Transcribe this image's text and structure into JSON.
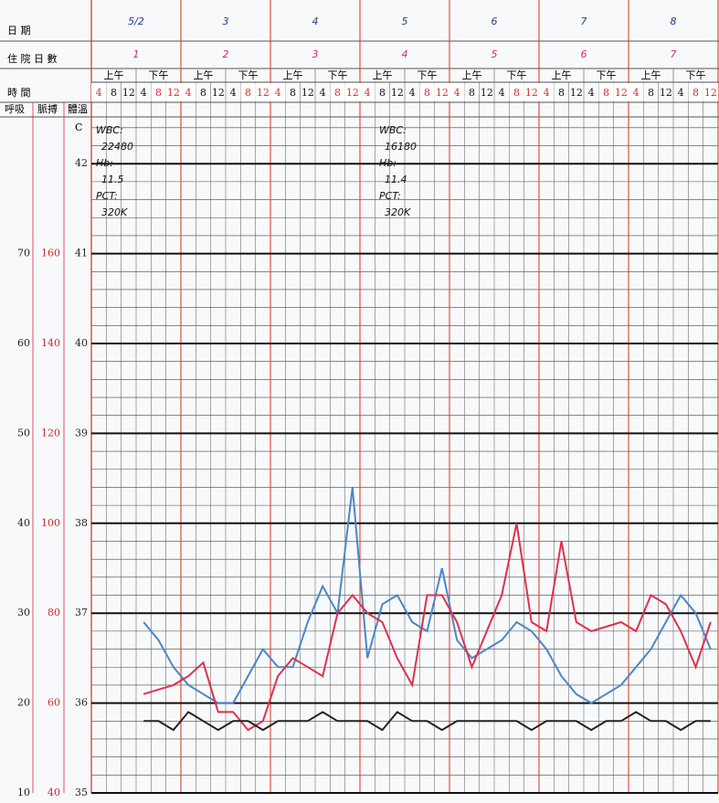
{
  "chart_data": {
    "type": "line",
    "row_labels": {
      "date": "日 期",
      "day": "住 院 日 數",
      "time": "時 間"
    },
    "periods": [
      "上午",
      "下午"
    ],
    "dates": [
      "5/2",
      "3",
      "4",
      "5",
      "6",
      "7",
      "8"
    ],
    "hospital_days": [
      "1",
      "2",
      "3",
      "4",
      "5",
      "6",
      "7"
    ],
    "categories": [
      "4",
      "8",
      "12",
      "4",
      "8",
      "12",
      "4",
      "8",
      "12",
      "4",
      "8",
      "12",
      "4",
      "8",
      "12",
      "4",
      "8",
      "12",
      "4",
      "8",
      "12",
      "4",
      "8",
      "12",
      "4",
      "8",
      "12",
      "4",
      "8",
      "12",
      "4",
      "8",
      "12",
      "4",
      "8",
      "12",
      "4",
      "8",
      "12",
      "4",
      "8",
      "12"
    ],
    "temp_unit": "C",
    "ylim": [
      35,
      42.5
    ],
    "yticks": [
      35,
      36,
      37,
      38,
      39,
      40,
      41,
      42
    ],
    "y2lim": [
      40,
      190
    ],
    "y2ticks": [
      40,
      60,
      80,
      100,
      120,
      140,
      160
    ],
    "y3lim": [
      10,
      85
    ],
    "y3ticks": [
      10,
      20,
      30,
      40,
      50,
      60,
      70
    ],
    "series": [
      {
        "name": "體溫",
        "color": "#4a86c8",
        "axis": "y",
        "values": [
          null,
          null,
          null,
          36.9,
          36.7,
          36.4,
          36.2,
          36.1,
          36.0,
          36.0,
          36.3,
          36.6,
          36.4,
          36.4,
          36.9,
          37.3,
          37.0,
          38.4,
          36.5,
          37.1,
          37.2,
          36.9,
          36.8,
          37.5,
          36.7,
          36.5,
          36.6,
          36.7,
          36.9,
          36.8,
          36.6,
          36.3,
          36.1,
          36.0,
          36.1,
          36.2,
          36.4,
          36.6,
          36.9,
          37.2,
          37.0,
          36.6
        ]
      },
      {
        "name": "脈搏",
        "color": "#e0304a",
        "axis": "y2",
        "values": [
          null,
          null,
          null,
          62,
          63,
          64,
          66,
          69,
          58,
          58,
          54,
          56,
          66,
          70,
          68,
          66,
          80,
          84,
          80,
          78,
          70,
          64,
          84,
          84,
          78,
          68,
          76,
          84,
          100,
          78,
          76,
          96,
          78,
          76,
          77,
          78,
          76,
          84,
          82,
          76,
          68,
          78
        ]
      },
      {
        "name": "呼吸",
        "color": "#222222",
        "axis": "y3",
        "values": [
          null,
          null,
          null,
          18,
          18,
          17,
          19,
          18,
          17,
          18,
          18,
          17,
          18,
          18,
          18,
          19,
          18,
          18,
          18,
          17,
          19,
          18,
          18,
          17,
          18,
          18,
          18,
          18,
          18,
          17,
          18,
          18,
          18,
          17,
          18,
          18,
          19,
          18,
          18,
          17,
          18,
          18
        ]
      }
    ],
    "annotations": [
      [
        "WBC:",
        "22480",
        "Hb:",
        "11.5",
        "PCT:",
        "320K"
      ],
      [
        "WBC:",
        "16180",
        "Hb:",
        "11.4",
        "PCT:",
        "320K"
      ]
    ]
  }
}
